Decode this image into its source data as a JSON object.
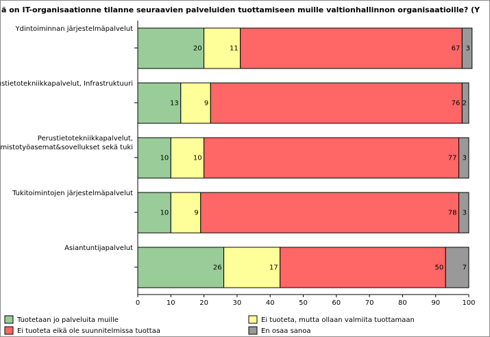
{
  "chart_data": {
    "type": "stacked_bar_horizontal",
    "title": "ä on IT-organisaationne tilanne seuraavien palveluiden tuottamiseen muille valtionhallinnon organisaatioille? (Y",
    "categories": [
      [
        "Ydintoiminnan järjestelmäpalvelut"
      ],
      [
        "Perustietotekniikkapalvelut, Infrastruktuuri"
      ],
      [
        "Perustietotekniikkapalvelut,",
        "Toimistotyöasemat&sovellukset sekä tuki"
      ],
      [
        "Tukitoimintojen järjestelmäpalvelut"
      ],
      [
        "Asiantuntijapalvelut"
      ]
    ],
    "series": [
      {
        "name": "Tuotetaan jo palveluita muille",
        "color": "#99cc99",
        "values": [
          20,
          13,
          10,
          10,
          26
        ]
      },
      {
        "name": "Ei tuoteta, mutta ollaan valmiita tuottamaan",
        "color": "#ffff99",
        "values": [
          11,
          9,
          10,
          9,
          17
        ]
      },
      {
        "name": "Ei tuoteta eikä ole suunnitelmissa tuottaa",
        "color": "#ff6666",
        "values": [
          67,
          76,
          77,
          78,
          50
        ]
      },
      {
        "name": "En osaa sanoa",
        "color": "#999999",
        "values": [
          3,
          2,
          3,
          3,
          7
        ]
      }
    ],
    "xlim": [
      0,
      100
    ],
    "xticks": [
      0,
      10,
      20,
      30,
      40,
      50,
      60,
      70,
      80,
      90,
      100
    ]
  }
}
